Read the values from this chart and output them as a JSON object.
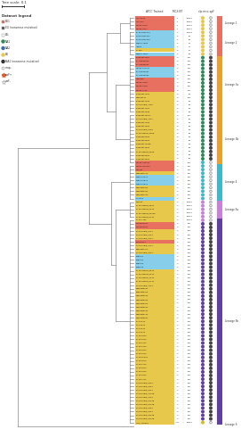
{
  "bg_color": "#FFFFFF",
  "tree_color": "#888888",
  "title": "Tree scale: 0.1",
  "n_strains": 114,
  "strains": [
    {
      "name": "MG-S1108",
      "rc": "#E87060",
      "bt": "1",
      "clp": "16065",
      "dc": "#E8C84A",
      "d2": "open"
    },
    {
      "name": "MG-S112",
      "rc": "#E87060",
      "bt": "1",
      "clp": "16065",
      "dc": "#E8C84A",
      "d2": "open"
    },
    {
      "name": "MRC05-0215",
      "rc": "#E87060",
      "bt": "1",
      "clp": "16071",
      "dc": "#E8C84A",
      "d2": "open"
    },
    {
      "name": "MRC05-0417",
      "rc": "#E87060",
      "bt": "1",
      "clp": "16071",
      "dc": "#E8C84A",
      "d2": "open"
    },
    {
      "name": "47-14-0800014",
      "rc": "#87CEEB",
      "bt": "2",
      "clp": "16072",
      "dc": "#E8C84A",
      "d2": "open"
    },
    {
      "name": "47-20-0800007",
      "rc": "#87CEEB",
      "bt": "2",
      "clp": "84",
      "dc": "#E8C84A",
      "d2": "open"
    },
    {
      "name": "47-20-0800064",
      "rc": "#87CEEB",
      "bt": "2",
      "clp": "84",
      "dc": "#E8C84A",
      "d2": "open"
    },
    {
      "name": "C288-0-1058",
      "rc": "#87CEEB",
      "bt": "2",
      "clp": "24",
      "dc": "#E8C84A",
      "d2": "open"
    },
    {
      "name": "JF908",
      "rc": "#87CEEB",
      "bt": "2",
      "clp": "24",
      "dc": "#E8C84A",
      "d2": "open"
    },
    {
      "name": "17-139",
      "rc": "#E8C84A",
      "bt": "2",
      "clp": "24",
      "dc": "#E8C84A",
      "d2": "open"
    },
    {
      "name": "C288-0-1360",
      "rc": "#87CEEB",
      "bt": "2",
      "clp": "84",
      "dc": "#E8C84A",
      "d2": "open"
    },
    {
      "name": "Beaudet 1307",
      "rc": "#E87060",
      "bt": "3",
      "clp": "ST5",
      "dc": "#2D8B57",
      "d2": "filled"
    },
    {
      "name": "47-7-R505050",
      "rc": "#E87060",
      "bt": "3",
      "clp": "ST5",
      "dc": "#2D8B57",
      "d2": "filled"
    },
    {
      "name": "47-7-R505052",
      "rc": "#E87060",
      "bt": "3",
      "clp": "ST5",
      "dc": "#2D8B57",
      "d2": "filled"
    },
    {
      "name": "MRC05-PLUS17",
      "rc": "#87CEEB",
      "bt": "3",
      "clp": "ST5",
      "dc": "#2D8B57",
      "d2": "filled"
    },
    {
      "name": "47-7-R505081",
      "rc": "#87CEEB",
      "bt": "3",
      "clp": "ST5",
      "dc": "#2D8B57",
      "d2": "filled"
    },
    {
      "name": "47-7-R505082",
      "rc": "#87CEEB",
      "bt": "3",
      "clp": "ST5",
      "dc": "#2D8B57",
      "d2": "filled"
    },
    {
      "name": "C405050",
      "rc": "#E87060",
      "bt": "3",
      "clp": "ST5",
      "dc": "#2D8B57",
      "d2": "filled"
    },
    {
      "name": "MRC05-0225",
      "rc": "#E87060",
      "bt": "3",
      "clp": "ST5",
      "dc": "#2D8B57",
      "d2": "filled"
    },
    {
      "name": "MRC05-0228",
      "rc": "#E87060",
      "bt": "3",
      "clp": "ST5",
      "dc": "#2D8B57",
      "d2": "filled"
    },
    {
      "name": "MRC05-0-16",
      "rc": "#E87060",
      "bt": "3",
      "clp": "ST5",
      "dc": "#2D8B57",
      "d2": "filled"
    },
    {
      "name": "Beaudet 1100",
      "rc": "#E8C84A",
      "bt": "3",
      "clp": "84",
      "dc": "#2D8B57",
      "d2": "filled"
    },
    {
      "name": "Beaudet-11",
      "rc": "#E8C84A",
      "bt": "3",
      "clp": "870",
      "dc": "#2D8B57",
      "d2": "filled"
    },
    {
      "name": "Beaudet 1108",
      "rc": "#E8C84A",
      "bt": "3",
      "clp": "84",
      "dc": "#2D8B57",
      "d2": "filled"
    },
    {
      "name": "47-3-Handle_1108",
      "rc": "#E8C84A",
      "bt": "3",
      "clp": "84",
      "dc": "#2D8B57",
      "d2": "filled"
    },
    {
      "name": "Beaudet 1109",
      "rc": "#E8C84A",
      "bt": "3",
      "clp": "84",
      "dc": "#2D8B57",
      "d2": "filled"
    },
    {
      "name": "Beaudet 2048",
      "rc": "#E8C84A",
      "bt": "3",
      "clp": "84",
      "dc": "#2D8B57",
      "d2": "filled"
    },
    {
      "name": "Beaudet 1007A",
      "rc": "#E8C84A",
      "bt": "3",
      "clp": "ST5",
      "dc": "#2D8B57",
      "d2": "filled"
    },
    {
      "name": "47-3-Handle_1107",
      "rc": "#E8C84A",
      "bt": "3",
      "clp": "84",
      "dc": "#2D8B57",
      "d2": "filled"
    },
    {
      "name": "Beaudet 1708",
      "rc": "#E8C84A",
      "bt": "3",
      "clp": "84",
      "dc": "#2D8B57",
      "d2": "filled"
    },
    {
      "name": "Beaudet 1208",
      "rc": "#E8C84A",
      "bt": "3",
      "clp": "84",
      "dc": "#2D8B57",
      "d2": "filled"
    },
    {
      "name": "47-3-Handle_0208",
      "rc": "#E8C84A",
      "bt": "3",
      "clp": "84",
      "dc": "#2D8B57",
      "d2": "filled"
    },
    {
      "name": "47-13-Handle_3208",
      "rc": "#E8C84A",
      "bt": "3",
      "clp": "84",
      "dc": "#2D8B57",
      "d2": "filled"
    },
    {
      "name": "Beaudet 0208",
      "rc": "#E8C84A",
      "bt": "3",
      "clp": "84",
      "dc": "#2D8B57",
      "d2": "filled"
    },
    {
      "name": "Beaudet 0908",
      "rc": "#E8C84A",
      "bt": "3",
      "clp": "84",
      "dc": "#2D8B57",
      "d2": "filled"
    },
    {
      "name": "Beaudet 1108b",
      "rc": "#E8C84A",
      "bt": "3",
      "clp": "84",
      "dc": "#2D8B57",
      "d2": "filled"
    },
    {
      "name": "Beaudet 1308",
      "rc": "#E8C84A",
      "bt": "3",
      "clp": "84",
      "dc": "#2D8B57",
      "d2": "filled"
    },
    {
      "name": "47-13-Handle_0908",
      "rc": "#E8C84A",
      "bt": "3",
      "clp": "84",
      "dc": "#2D8B57",
      "d2": "filled"
    },
    {
      "name": "Beaudet 0508",
      "rc": "#E8C84A",
      "bt": "3",
      "clp": "84",
      "dc": "#2D8B57",
      "d2": "filled"
    },
    {
      "name": "Beaudet 0808",
      "rc": "#E8C84A",
      "bt": "3",
      "clp": "84",
      "dc": "#2D8B57",
      "d2": "filled"
    },
    {
      "name": "MRC05-030215",
      "rc": "#E87060",
      "bt": "4",
      "clp": "ST5",
      "dc": "#40B8C8",
      "d2": "open"
    },
    {
      "name": "MRC05-G10215",
      "rc": "#E87060",
      "bt": "4",
      "clp": "ST5",
      "dc": "#40B8C8",
      "d2": "open"
    },
    {
      "name": "R11083",
      "rc": "#E87060",
      "bt": "4",
      "clp": "ST5",
      "dc": "#40B8C8",
      "d2": "open"
    },
    {
      "name": "Beaudet1211",
      "rc": "#E8C84A",
      "bt": "4",
      "clp": "951",
      "dc": "#40B8C8",
      "d2": "open"
    },
    {
      "name": "C288-0-0214",
      "rc": "#87CEEB",
      "bt": "4",
      "clp": "951",
      "dc": "#40B8C8",
      "d2": "open"
    },
    {
      "name": "C288-0-0514",
      "rc": "#87CEEB",
      "bt": "4",
      "clp": "951",
      "dc": "#40B8C8",
      "d2": "open"
    },
    {
      "name": "C288-0-0614",
      "rc": "#87CEEB",
      "bt": "4",
      "clp": "951",
      "dc": "#40B8C8",
      "d2": "open"
    },
    {
      "name": "Beaudet1012",
      "rc": "#E8C84A",
      "bt": "4",
      "clp": "951",
      "dc": "#40B8C8",
      "d2": "open"
    },
    {
      "name": "Beaudet0412",
      "rc": "#E8C84A",
      "bt": "4",
      "clp": "951",
      "dc": "#40B8C8",
      "d2": "open"
    },
    {
      "name": "Beaudet1113",
      "rc": "#E8C84A",
      "bt": "4",
      "clp": "951",
      "dc": "#40B8C8",
      "d2": "open"
    },
    {
      "name": "17-0498",
      "rc": "#87CEEB",
      "bt": "4",
      "clp": "951",
      "dc": "#40B8C8",
      "d2": "open"
    },
    {
      "name": "R11043",
      "rc": "#E8C84A",
      "bt": "4",
      "clp": "16082",
      "dc": "#C880D8",
      "d2": "open"
    },
    {
      "name": "47-13-Handle_0512",
      "rc": "#E8C84A",
      "bt": "4",
      "clp": "16077",
      "dc": "#C880D8",
      "d2": "open"
    },
    {
      "name": "47-13-Handle_0412",
      "rc": "#E8C84A",
      "bt": "4",
      "clp": "16071",
      "dc": "#C880D8",
      "d2": "open"
    },
    {
      "name": "47-13-Handle_0512b",
      "rc": "#E8C84A",
      "bt": "4",
      "clp": "16071",
      "dc": "#C880D8",
      "d2": "open"
    },
    {
      "name": "47-13-Handle_0712",
      "rc": "#E8C84A",
      "bt": "4",
      "clp": "16071",
      "dc": "#C880D8",
      "d2": "open"
    },
    {
      "name": "47-13-1105",
      "rc": "#E8C84A",
      "bt": "4",
      "clp": "16071",
      "dc": "#C880D8",
      "d2": "open"
    },
    {
      "name": "MTC500G51T",
      "rc": "#E87060",
      "bt": "4",
      "clp": "951",
      "dc": "#6040A0",
      "d2": "filled"
    },
    {
      "name": "MTC500G52T",
      "rc": "#E87060",
      "bt": "4",
      "clp": "951",
      "dc": "#6040A0",
      "d2": "filled"
    },
    {
      "name": "47-3-Handle_0714",
      "rc": "#E8C84A",
      "bt": "4",
      "clp": "951",
      "dc": "#6040A0",
      "d2": "filled"
    },
    {
      "name": "47-3-Handle_0514",
      "rc": "#E8C84A",
      "bt": "4",
      "clp": "951",
      "dc": "#6040A0",
      "d2": "filled"
    },
    {
      "name": "47-3-Handle_0214",
      "rc": "#E8C84A",
      "bt": "4",
      "clp": "951",
      "dc": "#6040A0",
      "d2": "filled"
    },
    {
      "name": "CQHN1T14",
      "rc": "#E87060",
      "bt": "4",
      "clp": "951",
      "dc": "#6040A0",
      "d2": "filled"
    },
    {
      "name": "47-3-Handle_0114",
      "rc": "#E8C84A",
      "bt": "4",
      "clp": "951",
      "dc": "#6040A0",
      "d2": "filled"
    },
    {
      "name": "Beaudet1177",
      "rc": "#E8C84A",
      "bt": "4",
      "clp": "951",
      "dc": "#6040A0",
      "d2": "filled"
    },
    {
      "name": "47-3-Handle_0614",
      "rc": "#E8C84A",
      "bt": "4",
      "clp": "951",
      "dc": "#6040A0",
      "d2": "filled"
    },
    {
      "name": "C288-01",
      "rc": "#87CEEB",
      "bt": "4",
      "clp": "951",
      "dc": "#6040A0",
      "d2": "filled"
    },
    {
      "name": "C288-02",
      "rc": "#87CEEB",
      "bt": "4",
      "clp": "951",
      "dc": "#6040A0",
      "d2": "filled"
    },
    {
      "name": "C288-03",
      "rc": "#87CEEB",
      "bt": "4",
      "clp": "951",
      "dc": "#6040A0",
      "d2": "filled"
    },
    {
      "name": "C288-05",
      "rc": "#87CEEB",
      "bt": "4",
      "clp": "951",
      "dc": "#6040A0",
      "d2": "filled"
    },
    {
      "name": "47-12-Handle_0514",
      "rc": "#E8C84A",
      "bt": "4",
      "clp": "951",
      "dc": "#6040A0",
      "d2": "filled"
    },
    {
      "name": "47-12-Handle_0614",
      "rc": "#E8C84A",
      "bt": "4",
      "clp": "951",
      "dc": "#6040A0",
      "d2": "filled"
    },
    {
      "name": "47-13-Handle_1214",
      "rc": "#E8C84A",
      "bt": "4",
      "clp": "951",
      "dc": "#6040A0",
      "d2": "filled"
    },
    {
      "name": "47-13-Handle_0114",
      "rc": "#E8C84A",
      "bt": "4",
      "clp": "951",
      "dc": "#6040A0",
      "d2": "filled"
    },
    {
      "name": "47-3-Handle_1114",
      "rc": "#E8C84A",
      "bt": "4",
      "clp": "951",
      "dc": "#6040A0",
      "d2": "filled"
    },
    {
      "name": "Beaudet0914",
      "rc": "#E8C84A",
      "bt": "4",
      "clp": "951",
      "dc": "#6040A0",
      "d2": "filled"
    },
    {
      "name": "Beaudet0114",
      "rc": "#E8C84A",
      "bt": "4",
      "clp": "951",
      "dc": "#6040A0",
      "d2": "filled"
    },
    {
      "name": "Beaudet0214",
      "rc": "#E8C84A",
      "bt": "4",
      "clp": "951",
      "dc": "#6040A0",
      "d2": "filled"
    },
    {
      "name": "Beaudet0314",
      "rc": "#E8C84A",
      "bt": "4",
      "clp": "951",
      "dc": "#6040A0",
      "d2": "filled"
    },
    {
      "name": "Beaudet0414",
      "rc": "#E8C84A",
      "bt": "4",
      "clp": "951",
      "dc": "#6040A0",
      "d2": "filled"
    },
    {
      "name": "Beaudet0514",
      "rc": "#E8C84A",
      "bt": "4",
      "clp": "951",
      "dc": "#6040A0",
      "d2": "filled"
    },
    {
      "name": "Beaudet0614",
      "rc": "#E8C84A",
      "bt": "4",
      "clp": "951",
      "dc": "#6040A0",
      "d2": "filled"
    },
    {
      "name": "Beaudet0714",
      "rc": "#E8C84A",
      "bt": "4",
      "clp": "951",
      "dc": "#6040A0",
      "d2": "filled"
    },
    {
      "name": "Beaudet0814",
      "rc": "#E8C84A",
      "bt": "4",
      "clp": "951",
      "dc": "#6040A0",
      "d2": "filled"
    },
    {
      "name": "47-3-0714",
      "rc": "#E8C84A",
      "bt": "4",
      "clp": "951",
      "dc": "#6040A0",
      "d2": "filled"
    },
    {
      "name": "47-3-0514",
      "rc": "#E8C84A",
      "bt": "4",
      "clp": "951",
      "dc": "#6040A0",
      "d2": "filled"
    },
    {
      "name": "47-3-0214",
      "rc": "#E8C84A",
      "bt": "4",
      "clp": "951",
      "dc": "#6040A0",
      "d2": "filled"
    },
    {
      "name": "47-3-0114",
      "rc": "#E8C84A",
      "bt": "4",
      "clp": "951",
      "dc": "#6040A0",
      "d2": "filled"
    },
    {
      "name": "47-12-0814",
      "rc": "#E8C84A",
      "bt": "4",
      "clp": "951",
      "dc": "#6040A0",
      "d2": "filled"
    },
    {
      "name": "47-12-0514",
      "rc": "#E8C84A",
      "bt": "4",
      "clp": "951",
      "dc": "#6040A0",
      "d2": "filled"
    },
    {
      "name": "47-12-0414",
      "rc": "#E8C84A",
      "bt": "4",
      "clp": "951",
      "dc": "#6040A0",
      "d2": "filled"
    },
    {
      "name": "47-13-0114",
      "rc": "#E8C84A",
      "bt": "4",
      "clp": "951",
      "dc": "#6040A0",
      "d2": "filled"
    },
    {
      "name": "47-13-0314",
      "rc": "#E8C84A",
      "bt": "4",
      "clp": "951",
      "dc": "#6040A0",
      "d2": "filled"
    },
    {
      "name": "47-13-0514",
      "rc": "#E8C84A",
      "bt": "4",
      "clp": "951",
      "dc": "#6040A0",
      "d2": "filled"
    },
    {
      "name": "47-13-0514b",
      "rc": "#E8C84A",
      "bt": "4",
      "clp": "951",
      "dc": "#6040A0",
      "d2": "filled"
    },
    {
      "name": "47-13-0614",
      "rc": "#E8C84A",
      "bt": "4",
      "clp": "951",
      "dc": "#6040A0",
      "d2": "filled"
    },
    {
      "name": "47-13-0714",
      "rc": "#E8C84A",
      "bt": "4",
      "clp": "951",
      "dc": "#6040A0",
      "d2": "filled"
    },
    {
      "name": "47-13-0814",
      "rc": "#E8C84A",
      "bt": "4",
      "clp": "951",
      "dc": "#6040A0",
      "d2": "filled"
    },
    {
      "name": "47-13-0914",
      "rc": "#E8C84A",
      "bt": "4",
      "clp": "951",
      "dc": "#6040A0",
      "d2": "filled"
    },
    {
      "name": "47-13-1014",
      "rc": "#E8C84A",
      "bt": "4",
      "clp": "951",
      "dc": "#6040A0",
      "d2": "filled"
    },
    {
      "name": "47-13-1114",
      "rc": "#E8C84A",
      "bt": "4",
      "clp": "951",
      "dc": "#6040A0",
      "d2": "filled"
    },
    {
      "name": "47-3-Handle_0814",
      "rc": "#E8C84A",
      "bt": "4",
      "clp": "951",
      "dc": "#6040A0",
      "d2": "filled"
    },
    {
      "name": "47-3-Handle_0914",
      "rc": "#E8C84A",
      "bt": "4",
      "clp": "951",
      "dc": "#6040A0",
      "d2": "filled"
    },
    {
      "name": "47-3-Handle_1014",
      "rc": "#E8C84A",
      "bt": "4",
      "clp": "951",
      "dc": "#6040A0",
      "d2": "filled"
    },
    {
      "name": "47-3-Handle_1114b",
      "rc": "#E8C84A",
      "bt": "4",
      "clp": "951",
      "dc": "#6040A0",
      "d2": "filled"
    },
    {
      "name": "47-3-Handle_1214",
      "rc": "#E8C84A",
      "bt": "4",
      "clp": "951",
      "dc": "#6040A0",
      "d2": "filled"
    },
    {
      "name": "47-3-Handle_0114b",
      "rc": "#E8C84A",
      "bt": "4",
      "clp": "951",
      "dc": "#6040A0",
      "d2": "filled"
    },
    {
      "name": "47-3-Handle_0214b",
      "rc": "#E8C84A",
      "bt": "4",
      "clp": "951",
      "dc": "#6040A0",
      "d2": "filled"
    },
    {
      "name": "47-3-Handle_0314",
      "rc": "#E8C84A",
      "bt": "4",
      "clp": "951",
      "dc": "#6040A0",
      "d2": "filled"
    },
    {
      "name": "47-3-Handle_0414",
      "rc": "#E8C84A",
      "bt": "4",
      "clp": "951",
      "dc": "#6040A0",
      "d2": "filled"
    },
    {
      "name": "47-3-Handle_0514b",
      "rc": "#E8C84A",
      "bt": "4",
      "clp": "951",
      "dc": "#6040A0",
      "d2": "filled"
    },
    {
      "name": "47-3-Handle_0614b",
      "rc": "#E8C84A",
      "bt": "4",
      "clp": "951",
      "dc": "#6040A0",
      "d2": "filled"
    },
    {
      "name": "ATCC_700669",
      "rc": "#E8C84A",
      "bt": "7-2",
      "clp": "19012",
      "dc": "#D0C020",
      "d2": "open"
    }
  ],
  "lineage_regions": [
    [
      0,
      3,
      "Lineage 1",
      "#E87060"
    ],
    [
      4,
      10,
      "Lineage 2",
      "#E87060"
    ],
    [
      11,
      26,
      "Lineage 3a",
      "#E8A030"
    ],
    [
      27,
      40,
      "Lineage 3b",
      "#E8A030"
    ],
    [
      41,
      50,
      "Lineage 4",
      "#40B8C8"
    ],
    [
      51,
      55,
      "Lineage 5a",
      "#C880D8"
    ],
    [
      56,
      112,
      "Lineage 5b",
      "#6040A0"
    ],
    [
      113,
      113,
      "Lineage 6",
      "#D0C020"
    ]
  ],
  "legend_items": [
    {
      "label": "EU1",
      "color": "#E87060",
      "type": "rect"
    },
    {
      "label": "EU (nonsense mutation)",
      "color": "#555555",
      "type": "rect"
    },
    {
      "label": "EU-",
      "color": "#FFFFFF",
      "type": "rect_border"
    },
    {
      "label": "NA1",
      "color": "#2D8B57",
      "type": "circle"
    },
    {
      "label": "NA2",
      "color": "#3B6EA5",
      "type": "circle"
    },
    {
      "label": "EU",
      "color": "#E8C84A",
      "type": "circle"
    },
    {
      "label": "NA1 (nonsense mutation)",
      "color": "#333333",
      "type": "circle"
    },
    {
      "label": "map-",
      "color": "#FFFFFF",
      "type": "circle_border"
    },
    {
      "label": "wzF+",
      "color": "#E05C2A",
      "type": "star"
    },
    {
      "label": "wzF-",
      "color": "#C0C0C0",
      "type": "star_border"
    }
  ]
}
